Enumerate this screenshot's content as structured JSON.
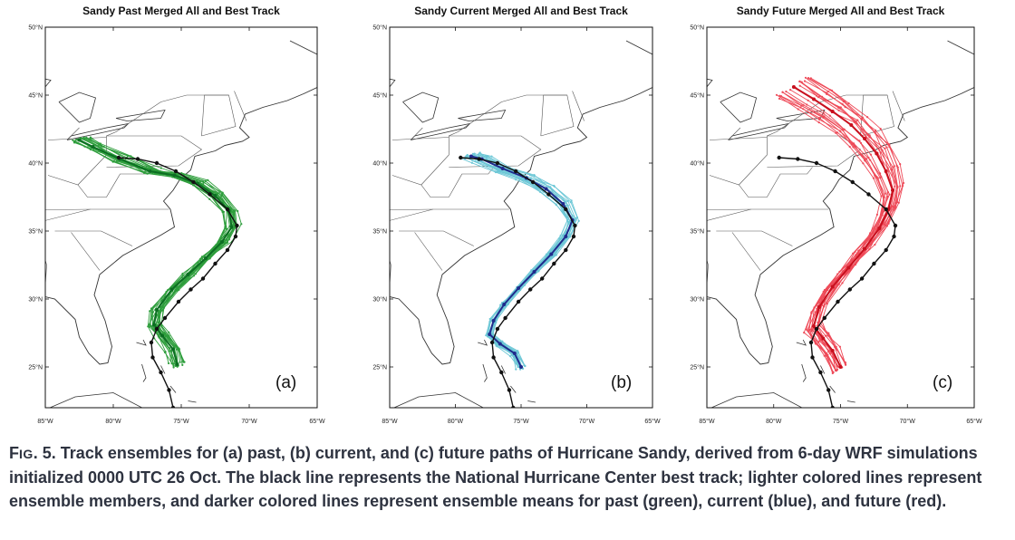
{
  "figure": {
    "panels": [
      {
        "title": "Sandy Past Merged All and Best Track",
        "letter": "(a)",
        "member_color": "#2e9e3c",
        "mean_color": "#0c6e22",
        "lat_ticks": [
          "50°N",
          "45°N",
          "40°N",
          "35°N",
          "30°N",
          "25°N"
        ],
        "lon_ticks": [
          "85°W",
          "80°W",
          "75°W",
          "70°W",
          "65°W"
        ]
      },
      {
        "title": "Sandy Current Merged All and Best Track",
        "letter": "(b)",
        "member_color": "#6cc7d6",
        "mean_color": "#1f2a8c",
        "lat_ticks": [
          "50°N",
          "45°N",
          "40°N",
          "35°N",
          "30°N",
          "25°N"
        ],
        "lon_ticks": [
          "85°W",
          "80°W",
          "75°W",
          "70°W",
          "65°W"
        ]
      },
      {
        "title": "Sandy Future Merged All and Best Track",
        "letter": "(c)",
        "member_color": "#ee4a58",
        "mean_color": "#c8101e",
        "lat_ticks": [
          "50°N",
          "45°N",
          "40°N",
          "35°N",
          "30°N",
          "25°N"
        ],
        "lon_ticks": [
          "85°W",
          "80°W",
          "75°W",
          "70°W",
          "65°W"
        ]
      }
    ],
    "best_track_color": "#111111"
  },
  "caption": {
    "label_first": "F",
    "label_rest": "IG",
    "label_num": ". 5.",
    "text": " Track ensembles for (a) past, (b) current, and (c) future paths of Hurricane Sandy, derived from 6-day WRF simulations initialized 0000 UTC 26 Oct. The black line represents the National Hurricane Center best track; lighter colored lines represent ensemble members, and darker colored lines represent ensemble means for past (green), current (blue), and future (red)."
  }
}
